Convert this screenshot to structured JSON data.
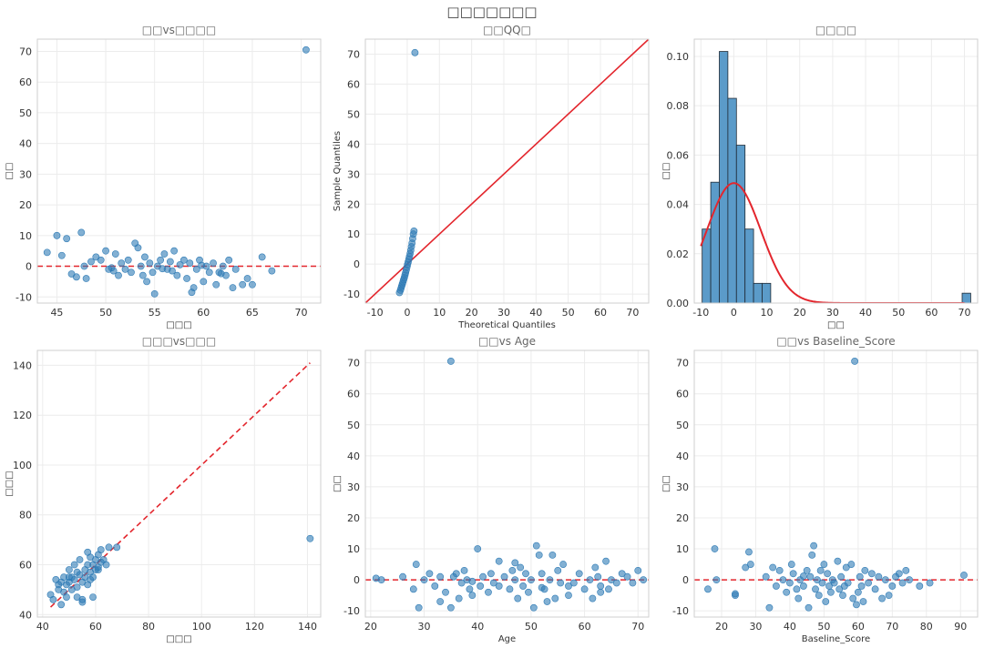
{
  "figure": {
    "title": "□□□□□□□"
  },
  "colors": {
    "point": "#2f7bb5",
    "point_fill": "rgba(47,123,181,0.6)",
    "ref_line": "#e3262d",
    "bar": "#5b9bc9",
    "grid": "#ececec"
  },
  "chart_data": [
    {
      "type": "scatter",
      "title": "□□vs□□□□",
      "xlabel": "□□□",
      "ylabel": "□□",
      "xlim": [
        43,
        72
      ],
      "ylim": [
        -12,
        74
      ],
      "xticks": [
        45,
        50,
        55,
        60,
        65,
        70
      ],
      "yticks": [
        -10,
        0,
        10,
        20,
        30,
        40,
        50,
        60,
        70
      ],
      "hline": 0,
      "points": [
        [
          70.5,
          70.5
        ],
        [
          44,
          4.5
        ],
        [
          45,
          10
        ],
        [
          45.5,
          3.5
        ],
        [
          46,
          9
        ],
        [
          46.5,
          -2.5
        ],
        [
          47.5,
          11
        ],
        [
          47.8,
          0
        ],
        [
          48,
          -4
        ],
        [
          48.5,
          1.5
        ],
        [
          49,
          3
        ],
        [
          49.5,
          2
        ],
        [
          50,
          5
        ],
        [
          50.3,
          -1
        ],
        [
          50.6,
          -0.5
        ],
        [
          51,
          4
        ],
        [
          51.3,
          -3
        ],
        [
          51.6,
          1
        ],
        [
          52,
          -1
        ],
        [
          52.3,
          2
        ],
        [
          52.6,
          -2
        ],
        [
          53,
          7.5
        ],
        [
          53.3,
          6
        ],
        [
          53.6,
          0
        ],
        [
          54,
          3
        ],
        [
          54.2,
          -5
        ],
        [
          54.5,
          1
        ],
        [
          54.8,
          -2
        ],
        [
          55,
          -9
        ],
        [
          55.3,
          0
        ],
        [
          55.6,
          2
        ],
        [
          56,
          4
        ],
        [
          56.3,
          -1
        ],
        [
          56.6,
          1.5
        ],
        [
          57,
          5
        ],
        [
          57.3,
          -3
        ],
        [
          57.6,
          0.5
        ],
        [
          58,
          2
        ],
        [
          58.3,
          -4
        ],
        [
          58.6,
          1
        ],
        [
          59,
          -7
        ],
        [
          59.3,
          -1
        ],
        [
          59.6,
          2
        ],
        [
          60,
          -5
        ],
        [
          60.3,
          0
        ],
        [
          60.6,
          -2
        ],
        [
          61,
          1
        ],
        [
          61.3,
          -6
        ],
        [
          61.6,
          -2
        ],
        [
          62,
          0
        ],
        [
          62.3,
          -3
        ],
        [
          62.6,
          2
        ],
        [
          63,
          -7
        ],
        [
          63.3,
          -1
        ],
        [
          64,
          -6
        ],
        [
          64.5,
          -4
        ],
        [
          65,
          -6
        ],
        [
          66,
          3
        ],
        [
          67,
          -1.5
        ],
        [
          56.8,
          -1.5
        ],
        [
          53.8,
          -3
        ],
        [
          50.8,
          -1.5
        ],
        [
          58.8,
          -8.5
        ],
        [
          47,
          -3.5
        ],
        [
          55.8,
          -0.8
        ],
        [
          59.8,
          0.3
        ],
        [
          61.8,
          -2.4
        ]
      ]
    },
    {
      "type": "scatter",
      "title": "□□QQ□",
      "xlabel": "Theoretical Quantiles",
      "ylabel": "Sample Quantiles",
      "xlim": [
        -13,
        75
      ],
      "ylim": [
        -13,
        75
      ],
      "xticks": [
        -10,
        0,
        10,
        20,
        30,
        40,
        50,
        60,
        70
      ],
      "yticks": [
        -10,
        0,
        10,
        20,
        30,
        40,
        50,
        60,
        70
      ],
      "line": [
        [
          -13,
          -13
        ],
        [
          75,
          75
        ]
      ],
      "points": [
        [
          -2.4,
          -9.5
        ],
        [
          -2.1,
          -8.7
        ],
        [
          -1.9,
          -8
        ],
        [
          -1.7,
          -7.3
        ],
        [
          -1.5,
          -6.6
        ],
        [
          -1.3,
          -5.9
        ],
        [
          -1.1,
          -5.2
        ],
        [
          -0.9,
          -4.5
        ],
        [
          -0.7,
          -3.7
        ],
        [
          -0.5,
          -2.9
        ],
        [
          -0.3,
          -2
        ],
        [
          -0.1,
          -1.1
        ],
        [
          0.1,
          -0.2
        ],
        [
          0.3,
          0.7
        ],
        [
          0.5,
          1.6
        ],
        [
          0.7,
          2.5
        ],
        [
          0.9,
          3.5
        ],
        [
          1.1,
          4.6
        ],
        [
          1.3,
          5.8
        ],
        [
          1.5,
          7
        ],
        [
          1.7,
          8.5
        ],
        [
          1.9,
          10
        ],
        [
          2.1,
          11
        ],
        [
          2.4,
          70.5
        ]
      ]
    },
    {
      "type": "bar",
      "title": "□□□□",
      "xlabel": "□□",
      "ylabel": "□□",
      "xlim": [
        -12,
        74
      ],
      "ylim": [
        0,
        0.107
      ],
      "xticks": [
        -10,
        0,
        10,
        20,
        30,
        40,
        50,
        60,
        70
      ],
      "yticks": [
        0.0,
        0.02,
        0.04,
        0.06,
        0.08,
        0.1
      ],
      "bin_width": 2.6,
      "bins": [
        [
          -9.6,
          0.03
        ],
        [
          -7,
          0.049
        ],
        [
          -4.4,
          0.102
        ],
        [
          -1.8,
          0.083
        ],
        [
          0.8,
          0.064
        ],
        [
          3.4,
          0.03
        ],
        [
          6,
          0.008
        ],
        [
          8.6,
          0.008
        ],
        [
          69.3,
          0.004
        ]
      ],
      "curve": {
        "mean": 0,
        "sd": 8.2
      }
    },
    {
      "type": "scatter",
      "title": "□□□vs□□□",
      "xlabel": "□□□",
      "ylabel": "□□□",
      "xlim": [
        38,
        145
      ],
      "ylim": [
        39,
        146
      ],
      "xticks": [
        40,
        60,
        80,
        100,
        120,
        140
      ],
      "yticks": [
        40,
        60,
        80,
        100,
        120,
        140
      ],
      "line": [
        [
          43,
          43
        ],
        [
          141,
          141
        ]
      ],
      "points": [
        [
          141,
          70.5
        ],
        [
          43,
          48
        ],
        [
          44,
          46
        ],
        [
          45,
          54
        ],
        [
          46,
          50
        ],
        [
          47,
          44
        ],
        [
          47,
          53
        ],
        [
          48,
          49
        ],
        [
          48,
          55
        ],
        [
          49,
          52
        ],
        [
          49,
          47
        ],
        [
          50,
          53
        ],
        [
          50,
          58
        ],
        [
          51,
          50
        ],
        [
          51,
          55
        ],
        [
          52,
          54
        ],
        [
          52,
          60
        ],
        [
          53,
          51
        ],
        [
          53,
          57
        ],
        [
          54,
          56
        ],
        [
          54,
          62
        ],
        [
          55,
          53
        ],
        [
          55,
          46
        ],
        [
          56,
          58
        ],
        [
          56,
          55
        ],
        [
          57,
          60
        ],
        [
          57,
          52
        ],
        [
          58,
          57
        ],
        [
          58,
          63
        ],
        [
          59,
          60
        ],
        [
          59,
          55
        ],
        [
          60,
          62
        ],
        [
          60,
          58
        ],
        [
          61,
          59
        ],
        [
          61,
          64
        ],
        [
          62,
          61
        ],
        [
          63,
          62
        ],
        [
          64,
          60
        ],
        [
          65,
          67
        ],
        [
          68,
          67
        ],
        [
          55,
          45
        ],
        [
          53,
          47
        ],
        [
          58,
          54
        ],
        [
          46,
          52
        ],
        [
          50,
          55
        ],
        [
          57,
          65
        ],
        [
          59,
          47
        ],
        [
          61,
          58
        ],
        [
          62,
          66
        ]
      ]
    },
    {
      "type": "scatter",
      "title": "□□vs Age",
      "xlabel": "Age",
      "ylabel": "□□",
      "xlim": [
        19,
        72
      ],
      "ylim": [
        -12,
        74
      ],
      "xticks": [
        20,
        30,
        40,
        50,
        60,
        70
      ],
      "yticks": [
        -10,
        0,
        10,
        20,
        30,
        40,
        50,
        60,
        70
      ],
      "hline": 0,
      "points": [
        [
          35,
          70.5
        ],
        [
          21,
          0.5
        ],
        [
          22,
          0
        ],
        [
          26,
          1
        ],
        [
          28,
          -3
        ],
        [
          28.5,
          5
        ],
        [
          29,
          -9
        ],
        [
          30,
          0
        ],
        [
          31,
          2
        ],
        [
          32,
          -2
        ],
        [
          33,
          1
        ],
        [
          34,
          -4
        ],
        [
          35,
          -9
        ],
        [
          35.5,
          1
        ],
        [
          36,
          2
        ],
        [
          36.5,
          -6
        ],
        [
          37,
          -1
        ],
        [
          37.5,
          3
        ],
        [
          38,
          0
        ],
        [
          38.5,
          -3
        ],
        [
          39,
          -5
        ],
        [
          40,
          10
        ],
        [
          40.5,
          -2
        ],
        [
          41,
          1
        ],
        [
          42,
          -4
        ],
        [
          42.5,
          2
        ],
        [
          43,
          -1
        ],
        [
          44,
          -2
        ],
        [
          45,
          1
        ],
        [
          46,
          -3
        ],
        [
          46.5,
          3
        ],
        [
          47,
          0
        ],
        [
          47.5,
          -6
        ],
        [
          48,
          4
        ],
        [
          48.5,
          -2
        ],
        [
          49,
          2
        ],
        [
          49.5,
          -4
        ],
        [
          50,
          0
        ],
        [
          50.5,
          -9
        ],
        [
          51,
          11
        ],
        [
          51.5,
          8
        ],
        [
          52,
          2
        ],
        [
          52.5,
          -3
        ],
        [
          53,
          -7
        ],
        [
          53.5,
          0
        ],
        [
          54,
          8
        ],
        [
          54.5,
          -6
        ],
        [
          55,
          3
        ],
        [
          55.5,
          -1
        ],
        [
          56,
          5
        ],
        [
          57,
          -2
        ],
        [
          58,
          -1
        ],
        [
          59,
          2
        ],
        [
          60,
          -3
        ],
        [
          61,
          0
        ],
        [
          61.5,
          -6
        ],
        [
          62,
          4
        ],
        [
          62.5,
          1
        ],
        [
          63,
          -2
        ],
        [
          64,
          6
        ],
        [
          64.5,
          -3
        ],
        [
          65,
          0
        ],
        [
          66,
          -1
        ],
        [
          67,
          2
        ],
        [
          68,
          1
        ],
        [
          69,
          -1
        ],
        [
          70,
          3
        ],
        [
          71,
          0
        ],
        [
          33,
          -7
        ],
        [
          44,
          6
        ],
        [
          57,
          -5
        ],
        [
          63,
          -4
        ],
        [
          52,
          -2.5
        ],
        [
          47,
          5.5
        ],
        [
          39,
          -0.5
        ]
      ]
    },
    {
      "type": "scatter",
      "title": "□□vs Baseline_Score",
      "xlabel": "Baseline_Score",
      "ylabel": "□□",
      "xlim": [
        12,
        95
      ],
      "ylim": [
        -12,
        74
      ],
      "xticks": [
        20,
        30,
        40,
        50,
        60,
        70,
        80,
        90
      ],
      "yticks": [
        -10,
        0,
        10,
        20,
        30,
        40,
        50,
        60,
        70
      ],
      "hline": 0,
      "points": [
        [
          59,
          70.5
        ],
        [
          16,
          -3
        ],
        [
          18,
          10
        ],
        [
          18.5,
          0
        ],
        [
          24,
          -5
        ],
        [
          27,
          4
        ],
        [
          28,
          9
        ],
        [
          28.5,
          5
        ],
        [
          33,
          1
        ],
        [
          34,
          -9
        ],
        [
          35,
          4
        ],
        [
          36,
          -2
        ],
        [
          37,
          3
        ],
        [
          38,
          0
        ],
        [
          39,
          -4
        ],
        [
          40,
          -1
        ],
        [
          40.5,
          5
        ],
        [
          41,
          2
        ],
        [
          42,
          -3
        ],
        [
          42.5,
          -6
        ],
        [
          43,
          0
        ],
        [
          44,
          -2
        ],
        [
          45,
          3
        ],
        [
          45.5,
          -9
        ],
        [
          46,
          1
        ],
        [
          46.5,
          8
        ],
        [
          47,
          11
        ],
        [
          47.5,
          -3
        ],
        [
          48,
          0
        ],
        [
          48.5,
          -5
        ],
        [
          49,
          3
        ],
        [
          49.5,
          -1
        ],
        [
          50,
          5
        ],
        [
          50.5,
          -7
        ],
        [
          51,
          2
        ],
        [
          51.5,
          -2
        ],
        [
          52,
          -4
        ],
        [
          52.5,
          0
        ],
        [
          53,
          -1
        ],
        [
          54,
          6
        ],
        [
          54.5,
          -3
        ],
        [
          55,
          1
        ],
        [
          55.5,
          -5
        ],
        [
          56,
          -2
        ],
        [
          56.5,
          4
        ],
        [
          57,
          -1
        ],
        [
          58,
          5
        ],
        [
          58.5,
          -6
        ],
        [
          59.5,
          -8
        ],
        [
          60,
          -4
        ],
        [
          60.5,
          1
        ],
        [
          61,
          -2
        ],
        [
          61.5,
          -7
        ],
        [
          62,
          3
        ],
        [
          63,
          -1
        ],
        [
          64,
          2
        ],
        [
          65,
          -3
        ],
        [
          66,
          1
        ],
        [
          67,
          -6
        ],
        [
          68,
          0
        ],
        [
          69,
          -5
        ],
        [
          70,
          -2
        ],
        [
          71,
          1
        ],
        [
          72,
          2
        ],
        [
          73,
          -1
        ],
        [
          74,
          3
        ],
        [
          75,
          0
        ],
        [
          78,
          -2
        ],
        [
          81,
          -1
        ],
        [
          91,
          1.5
        ],
        [
          24,
          -4.5
        ],
        [
          44,
          1.2
        ]
      ]
    }
  ]
}
